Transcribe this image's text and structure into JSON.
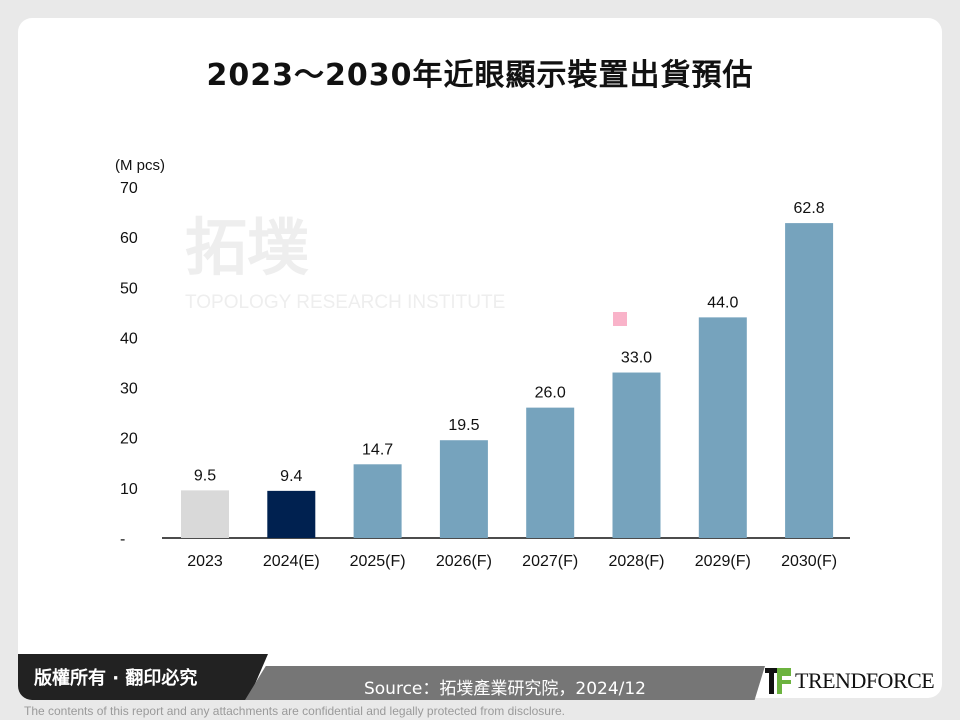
{
  "title": "2023～2030年近眼顯示裝置出貨預估",
  "chart_data": {
    "type": "bar",
    "title": "2023～2030年近眼顯示裝置出貨預估",
    "ylabel": "(M pcs)",
    "xlabel": "",
    "ylim": [
      0,
      70
    ],
    "yticks": [
      "-",
      "10",
      "20",
      "30",
      "40",
      "50",
      "60",
      "70"
    ],
    "categories": [
      "2023",
      "2024(E)",
      "2025(F)",
      "2026(F)",
      "2027(F)",
      "2028(F)",
      "2029(F)",
      "2030(F)"
    ],
    "values": [
      9.5,
      9.4,
      14.7,
      19.5,
      26.0,
      33.0,
      44.0,
      62.8
    ],
    "data_labels": [
      "9.5",
      "9.4",
      "14.7",
      "19.5",
      "26.0",
      "33.0",
      "44.0",
      "62.8"
    ],
    "colors": [
      "#d9d9d9",
      "#002150",
      "#76a3bd",
      "#76a3bd",
      "#76a3bd",
      "#76a3bd",
      "#76a3bd",
      "#76a3bd"
    ],
    "grid": false,
    "legend": "none"
  },
  "watermark": {
    "cn": "拓墣",
    "en": "TOPOLOGY RESEARCH INSTITUTE"
  },
  "footer": {
    "copyright": "版權所有 · 翻印必究",
    "source": "Source：拓墣產業研究院，2024/12",
    "brand": "TRENDFORCE",
    "disclaimer": "The contents of this report and any attachments are confidential and legally protected from disclosure."
  }
}
